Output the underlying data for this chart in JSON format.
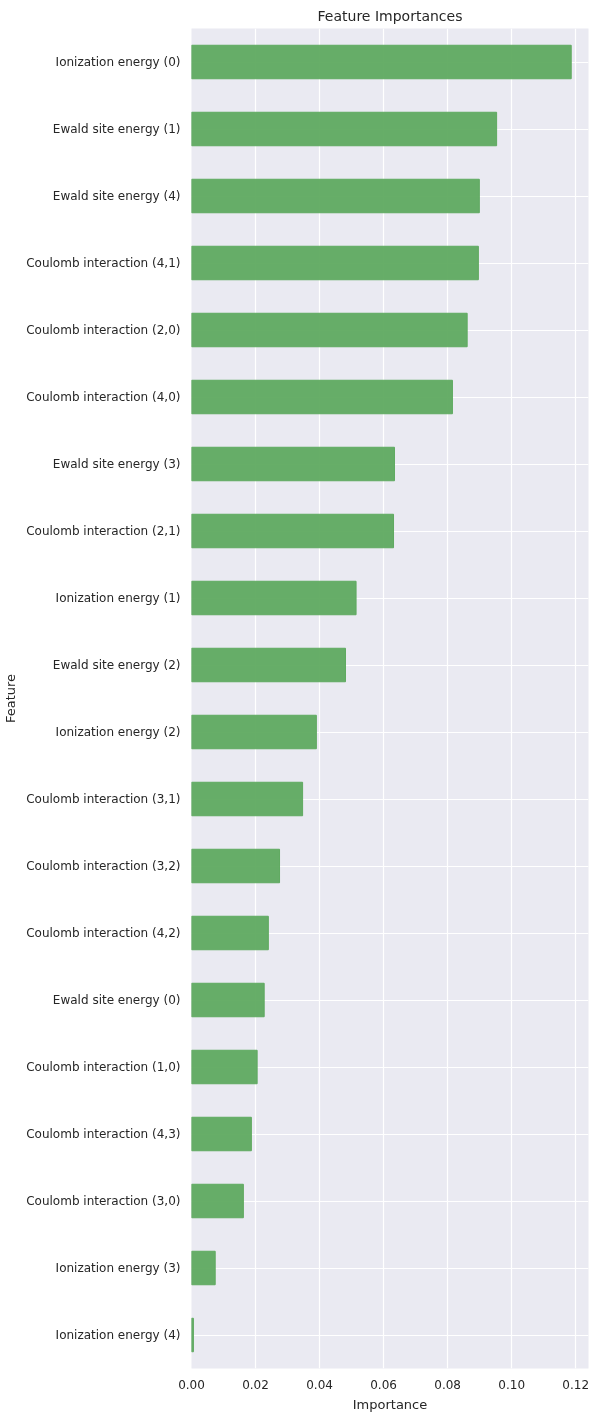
{
  "chart_data": {
    "type": "bar",
    "orientation": "horizontal",
    "title": "Feature Importances",
    "xlabel": "Importance",
    "ylabel": "Feature",
    "categories": [
      "Ionization energy (0)",
      "Ewald site energy (1)",
      "Ewald site energy (4)",
      "Coulomb interaction (4,1)",
      "Coulomb interaction (2,0)",
      "Coulomb interaction (4,0)",
      "Ewald site energy (3)",
      "Coulomb interaction (2,1)",
      "Ionization energy (1)",
      "Ewald site energy (2)",
      "Ionization energy (2)",
      "Coulomb interaction (3,1)",
      "Coulomb interaction (3,2)",
      "Coulomb interaction (4,2)",
      "Ewald site energy (0)",
      "Coulomb interaction (1,0)",
      "Coulomb interaction (4,3)",
      "Coulomb interaction (3,0)",
      "Ionization energy (3)",
      "Ionization energy (4)"
    ],
    "values": [
      0.1186,
      0.0953,
      0.0899,
      0.0896,
      0.0861,
      0.0815,
      0.0634,
      0.0631,
      0.0514,
      0.0481,
      0.039,
      0.0347,
      0.0275,
      0.024,
      0.0227,
      0.0205,
      0.0187,
      0.0162,
      0.0074,
      0.0006
    ],
    "color": "#5faa60",
    "xlim": [
      0,
      0.124
    ],
    "xticks": [
      {
        "value": 0,
        "label": "0.00"
      },
      {
        "value": 0.02,
        "label": "0.02"
      },
      {
        "value": 0.04,
        "label": "0.04"
      },
      {
        "value": 0.06,
        "label": "0.06"
      },
      {
        "value": 0.08,
        "label": "0.08"
      },
      {
        "value": 0.1,
        "label": "0.10"
      },
      {
        "value": 0.12,
        "label": "0.12"
      }
    ],
    "grid": true
  }
}
